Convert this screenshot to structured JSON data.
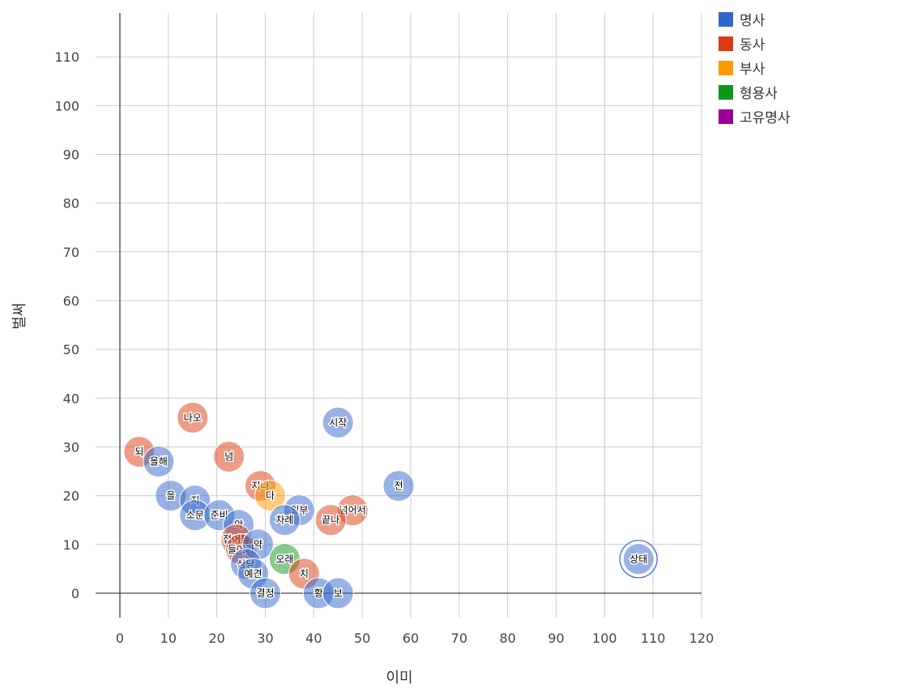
{
  "chart_data": {
    "type": "bubble",
    "title": "",
    "xlabel": "이미",
    "ylabel": "벌써",
    "xlim": [
      0,
      120
    ],
    "ylim": [
      -5,
      119
    ],
    "xticks": [
      0,
      10,
      20,
      30,
      40,
      50,
      60,
      70,
      80,
      90,
      100,
      110,
      120
    ],
    "yticks": [
      0,
      10,
      20,
      30,
      40,
      50,
      60,
      70,
      80,
      90,
      100,
      110
    ],
    "grid": true,
    "legend_position": "top-right",
    "legend": [
      {
        "name": "명사",
        "color": "#3366cc"
      },
      {
        "name": "동사",
        "color": "#dc3912"
      },
      {
        "name": "부사",
        "color": "#ff9900"
      },
      {
        "name": "형용사",
        "color": "#109618"
      },
      {
        "name": "고유명사",
        "color": "#990099"
      }
    ],
    "points": [
      {
        "label": "되",
        "x": 4,
        "y": 29,
        "series": "동사"
      },
      {
        "label": "올해",
        "x": 8,
        "y": 27,
        "series": "명사"
      },
      {
        "label": "나오",
        "x": 15,
        "y": 36,
        "series": "동사"
      },
      {
        "label": "넘",
        "x": 22.5,
        "y": 28,
        "series": "동사"
      },
      {
        "label": "시작",
        "x": 45,
        "y": 35,
        "series": "명사"
      },
      {
        "label": "전",
        "x": 57.5,
        "y": 22,
        "series": "명사"
      },
      {
        "label": "지나",
        "x": 29,
        "y": 22,
        "series": "동사"
      },
      {
        "label": "다",
        "x": 31,
        "y": 20,
        "series": "부사"
      },
      {
        "label": "일부",
        "x": 37,
        "y": 17,
        "series": "명사"
      },
      {
        "label": "넘어서",
        "x": 48,
        "y": 17,
        "series": "동사"
      },
      {
        "label": "차례",
        "x": 34,
        "y": 15,
        "series": "명사"
      },
      {
        "label": "끝나",
        "x": 43.5,
        "y": 15,
        "series": "동사"
      },
      {
        "label": "을",
        "x": 10.5,
        "y": 20,
        "series": "명사"
      },
      {
        "label": "지",
        "x": 15.5,
        "y": 19,
        "series": "명사"
      },
      {
        "label": "소문",
        "x": 15.5,
        "y": 16,
        "series": "명사"
      },
      {
        "label": "준비",
        "x": 20.5,
        "y": 16,
        "series": "명사"
      },
      {
        "label": "악",
        "x": 24.5,
        "y": 14,
        "series": "명사"
      },
      {
        "label": "접어들",
        "x": 24,
        "y": 11,
        "series": "동사"
      },
      {
        "label": "들어가",
        "x": 25,
        "y": 9,
        "series": "동사"
      },
      {
        "label": "약",
        "x": 28.5,
        "y": 10,
        "series": "명사"
      },
      {
        "label": "오래",
        "x": 34,
        "y": 7,
        "series": "형용사"
      },
      {
        "label": "상당",
        "x": 26,
        "y": 6,
        "series": "명사"
      },
      {
        "label": "예견",
        "x": 27.5,
        "y": 4,
        "series": "명사"
      },
      {
        "label": "치",
        "x": 38,
        "y": 4,
        "series": "동사"
      },
      {
        "label": "결정",
        "x": 30,
        "y": 0,
        "series": "명사"
      },
      {
        "label": "황",
        "x": 41,
        "y": 0,
        "series": "명사"
      },
      {
        "label": "보",
        "x": 45,
        "y": 0,
        "series": "명사"
      },
      {
        "label": "상태",
        "x": 107,
        "y": 7,
        "series": "명사"
      }
    ]
  }
}
